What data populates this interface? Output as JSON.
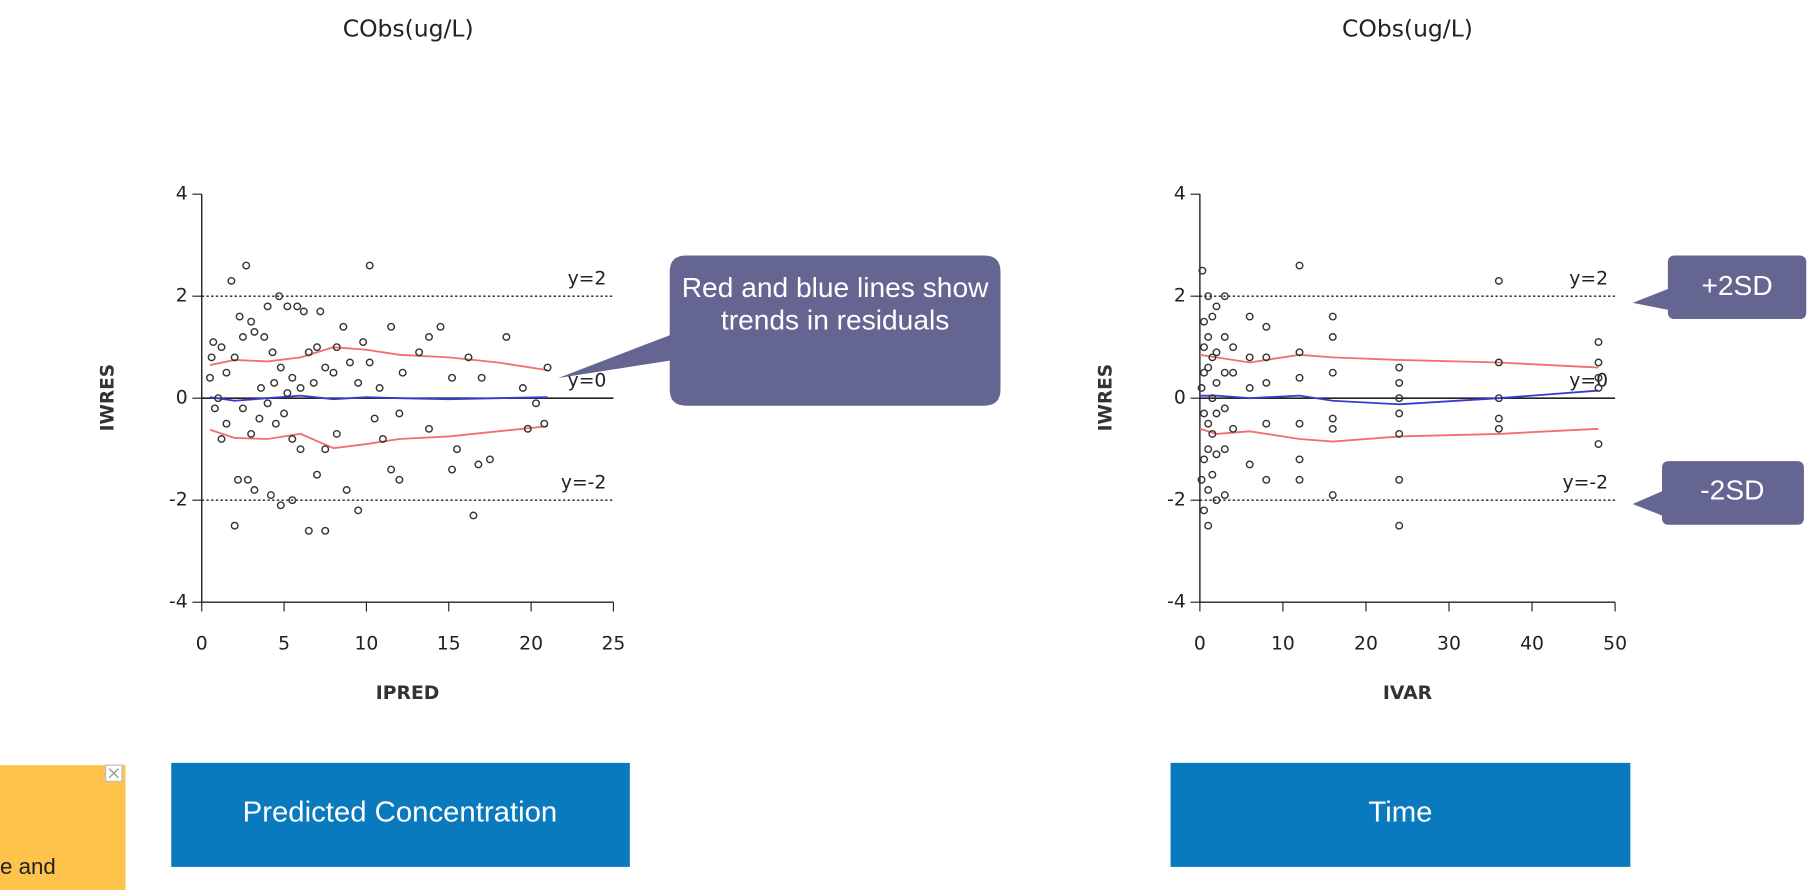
{
  "chart_data": [
    {
      "type": "scatter",
      "title": "CObs(ug/L)",
      "x_label": "IPRED",
      "y_label": "IWRES",
      "xlim": [
        0,
        25
      ],
      "ylim": [
        -4,
        4
      ],
      "xticks": [
        0,
        5,
        10,
        15,
        20,
        25
      ],
      "yticks": [
        -4,
        -2,
        0,
        2,
        4
      ],
      "points": {
        "color": "#333333",
        "x": [
          1.8,
          2.7,
          10.2,
          4.7,
          5.2,
          5.8,
          6.2,
          7.2,
          4.0,
          3.0,
          2.3,
          1.2,
          0.7,
          0.6,
          0.5,
          1.5,
          2,
          2.5,
          3.2,
          3.8,
          4.3,
          4.8,
          5.5,
          6,
          6.5,
          7,
          7.5,
          8.2,
          8.6,
          9,
          9.8,
          10.2,
          10.8,
          11.5,
          12.2,
          13.2,
          13.8,
          14.5,
          15.2,
          16.2,
          17,
          18.5,
          19.5,
          20.3,
          20.8,
          19.8,
          17.5,
          16.8,
          15.5,
          15.2,
          16.5,
          13.8,
          12,
          11.5,
          9.5,
          8.8,
          8.2,
          7.5,
          7,
          6.5,
          7.5,
          5.5,
          4.8,
          4.2,
          3.2,
          2.8,
          2.2,
          2,
          1.2,
          0.8,
          1,
          1.5,
          2.5,
          3,
          3.5,
          4,
          4.5,
          5,
          5.5,
          6,
          3.6,
          4.4,
          5.2,
          6.8,
          9.5,
          12,
          11,
          8,
          10.5,
          21
        ],
        "y": [
          2.3,
          2.6,
          2.6,
          2.0,
          1.8,
          1.8,
          1.7,
          1.7,
          1.8,
          1.5,
          1.6,
          1.0,
          1.1,
          0.8,
          0.4,
          0.5,
          0.8,
          1.2,
          1.3,
          1.2,
          0.9,
          0.6,
          0.4,
          0.2,
          0.9,
          1.0,
          0.6,
          1.0,
          1.4,
          0.7,
          1.1,
          0.7,
          0.2,
          1.4,
          0.5,
          0.9,
          1.2,
          1.4,
          0.4,
          0.8,
          0.4,
          1.2,
          0.2,
          -0.1,
          -0.5,
          -0.6,
          -1.2,
          -1.3,
          -1.0,
          -1.4,
          -2.3,
          -0.6,
          -1.6,
          -1.4,
          -2.2,
          -1.8,
          -0.7,
          -1.0,
          -1.5,
          -2.6,
          -2.6,
          -2.0,
          -2.1,
          -1.9,
          -1.8,
          -1.6,
          -1.6,
          -2.5,
          -0.8,
          -0.2,
          0.0,
          -0.5,
          -0.2,
          -0.7,
          -0.4,
          -0.1,
          -0.5,
          -0.3,
          -0.8,
          -1.0,
          0.2,
          0.3,
          0.1,
          0.3,
          0.3,
          -0.3,
          -0.8,
          0.5,
          -0.4,
          0.6
        ]
      },
      "lines": [
        {
          "color": "#f07070",
          "x": [
            0.5,
            2,
            4,
            6,
            8,
            10,
            12,
            15,
            18,
            21
          ],
          "values": [
            0.65,
            0.75,
            0.72,
            0.8,
            1.0,
            0.95,
            0.85,
            0.8,
            0.7,
            0.55
          ]
        },
        {
          "color": "#f07070",
          "x": [
            0.5,
            2,
            4,
            6,
            8,
            10,
            12,
            15,
            18,
            21
          ],
          "values": [
            -0.62,
            -0.78,
            -0.8,
            -0.7,
            -0.98,
            -0.9,
            -0.8,
            -0.75,
            -0.65,
            -0.55
          ]
        },
        {
          "color": "#3a3ad0",
          "x": [
            0.5,
            2,
            4,
            6,
            8,
            10,
            12,
            15,
            18,
            21
          ],
          "values": [
            0.02,
            -0.05,
            0.0,
            0.05,
            -0.02,
            0.02,
            0.0,
            -0.02,
            0.0,
            0.02
          ]
        }
      ],
      "reference_lines": [
        {
          "value": 2,
          "label": "y=2",
          "dashed": true
        },
        {
          "value": 0,
          "label": "y=0",
          "dashed": false
        },
        {
          "value": -2,
          "label": "y=-2",
          "dashed": true
        }
      ]
    },
    {
      "type": "scatter",
      "title": "CObs(ug/L)",
      "x_label": "IVAR",
      "y_label": "IWRES",
      "xlim": [
        0,
        50
      ],
      "ylim": [
        -4,
        4
      ],
      "xticks": [
        0,
        10,
        20,
        30,
        40,
        50
      ],
      "yticks": [
        -4,
        -2,
        0,
        2,
        4
      ],
      "points": {
        "color": "#333333",
        "x": [
          0.3,
          0.5,
          0.5,
          0.5,
          0.5,
          0.5,
          0.5,
          0.2,
          0.2,
          1,
          1,
          1,
          1,
          1,
          1,
          1,
          1.5,
          1.5,
          1.5,
          1.5,
          1.5,
          2,
          2,
          2,
          2,
          2,
          2,
          3,
          3,
          3,
          3,
          3,
          3,
          4,
          4,
          4,
          6,
          6,
          6,
          6,
          8,
          8,
          8,
          8,
          8,
          12,
          12,
          12,
          12,
          12,
          12,
          16,
          16,
          16,
          16,
          16,
          16,
          24,
          24,
          24,
          24,
          24,
          24,
          24,
          36,
          36,
          36,
          36,
          36,
          48,
          48,
          48,
          48,
          48
        ],
        "y": [
          2.5,
          1.5,
          1.0,
          0.5,
          -0.3,
          -1.2,
          -2.2,
          -1.6,
          0.2,
          2.0,
          1.2,
          0.6,
          -0.5,
          -1.0,
          -1.8,
          -2.5,
          1.6,
          0.8,
          0.0,
          -0.7,
          -1.5,
          1.8,
          0.9,
          0.3,
          -0.3,
          -1.1,
          -2.0,
          2.0,
          1.2,
          0.5,
          -0.2,
          -1.0,
          -1.9,
          1.0,
          0.5,
          -0.6,
          1.6,
          0.8,
          0.2,
          -1.3,
          1.4,
          0.8,
          0.3,
          -0.5,
          -1.6,
          2.6,
          0.9,
          0.4,
          -0.5,
          -1.2,
          -1.6,
          1.6,
          1.2,
          0.5,
          -0.4,
          -0.6,
          -1.9,
          0.6,
          0.3,
          0.0,
          -0.3,
          -0.7,
          -1.6,
          -2.5,
          2.3,
          0.7,
          0.0,
          -0.4,
          -0.6,
          1.1,
          0.7,
          0.4,
          0.2,
          -0.9
        ]
      },
      "lines": [
        {
          "color": "#f07070",
          "x": [
            0,
            2,
            6,
            12,
            16,
            24,
            36,
            48
          ],
          "values": [
            0.85,
            0.8,
            0.7,
            0.85,
            0.8,
            0.75,
            0.7,
            0.6
          ]
        },
        {
          "color": "#f07070",
          "x": [
            0,
            2,
            6,
            12,
            16,
            24,
            36,
            48
          ],
          "values": [
            -0.6,
            -0.7,
            -0.65,
            -0.8,
            -0.85,
            -0.75,
            -0.7,
            -0.6
          ]
        },
        {
          "color": "#3a3ad0",
          "x": [
            0,
            2,
            6,
            12,
            16,
            24,
            36,
            48
          ],
          "values": [
            0.05,
            0.05,
            0.0,
            0.05,
            -0.05,
            -0.12,
            0.0,
            0.15
          ]
        }
      ],
      "reference_lines": [
        {
          "value": 2,
          "label": "y=2",
          "dashed": true
        },
        {
          "value": 0,
          "label": "y=0",
          "dashed": false
        },
        {
          "value": -2,
          "label": "y=-2",
          "dashed": true
        }
      ]
    }
  ],
  "callouts": [
    "Red and blue lines show trends in residuals",
    "+2SD",
    "-2SD"
  ],
  "buttons": [
    "Predicted Concentration",
    "Time"
  ],
  "ad_text": "e and"
}
